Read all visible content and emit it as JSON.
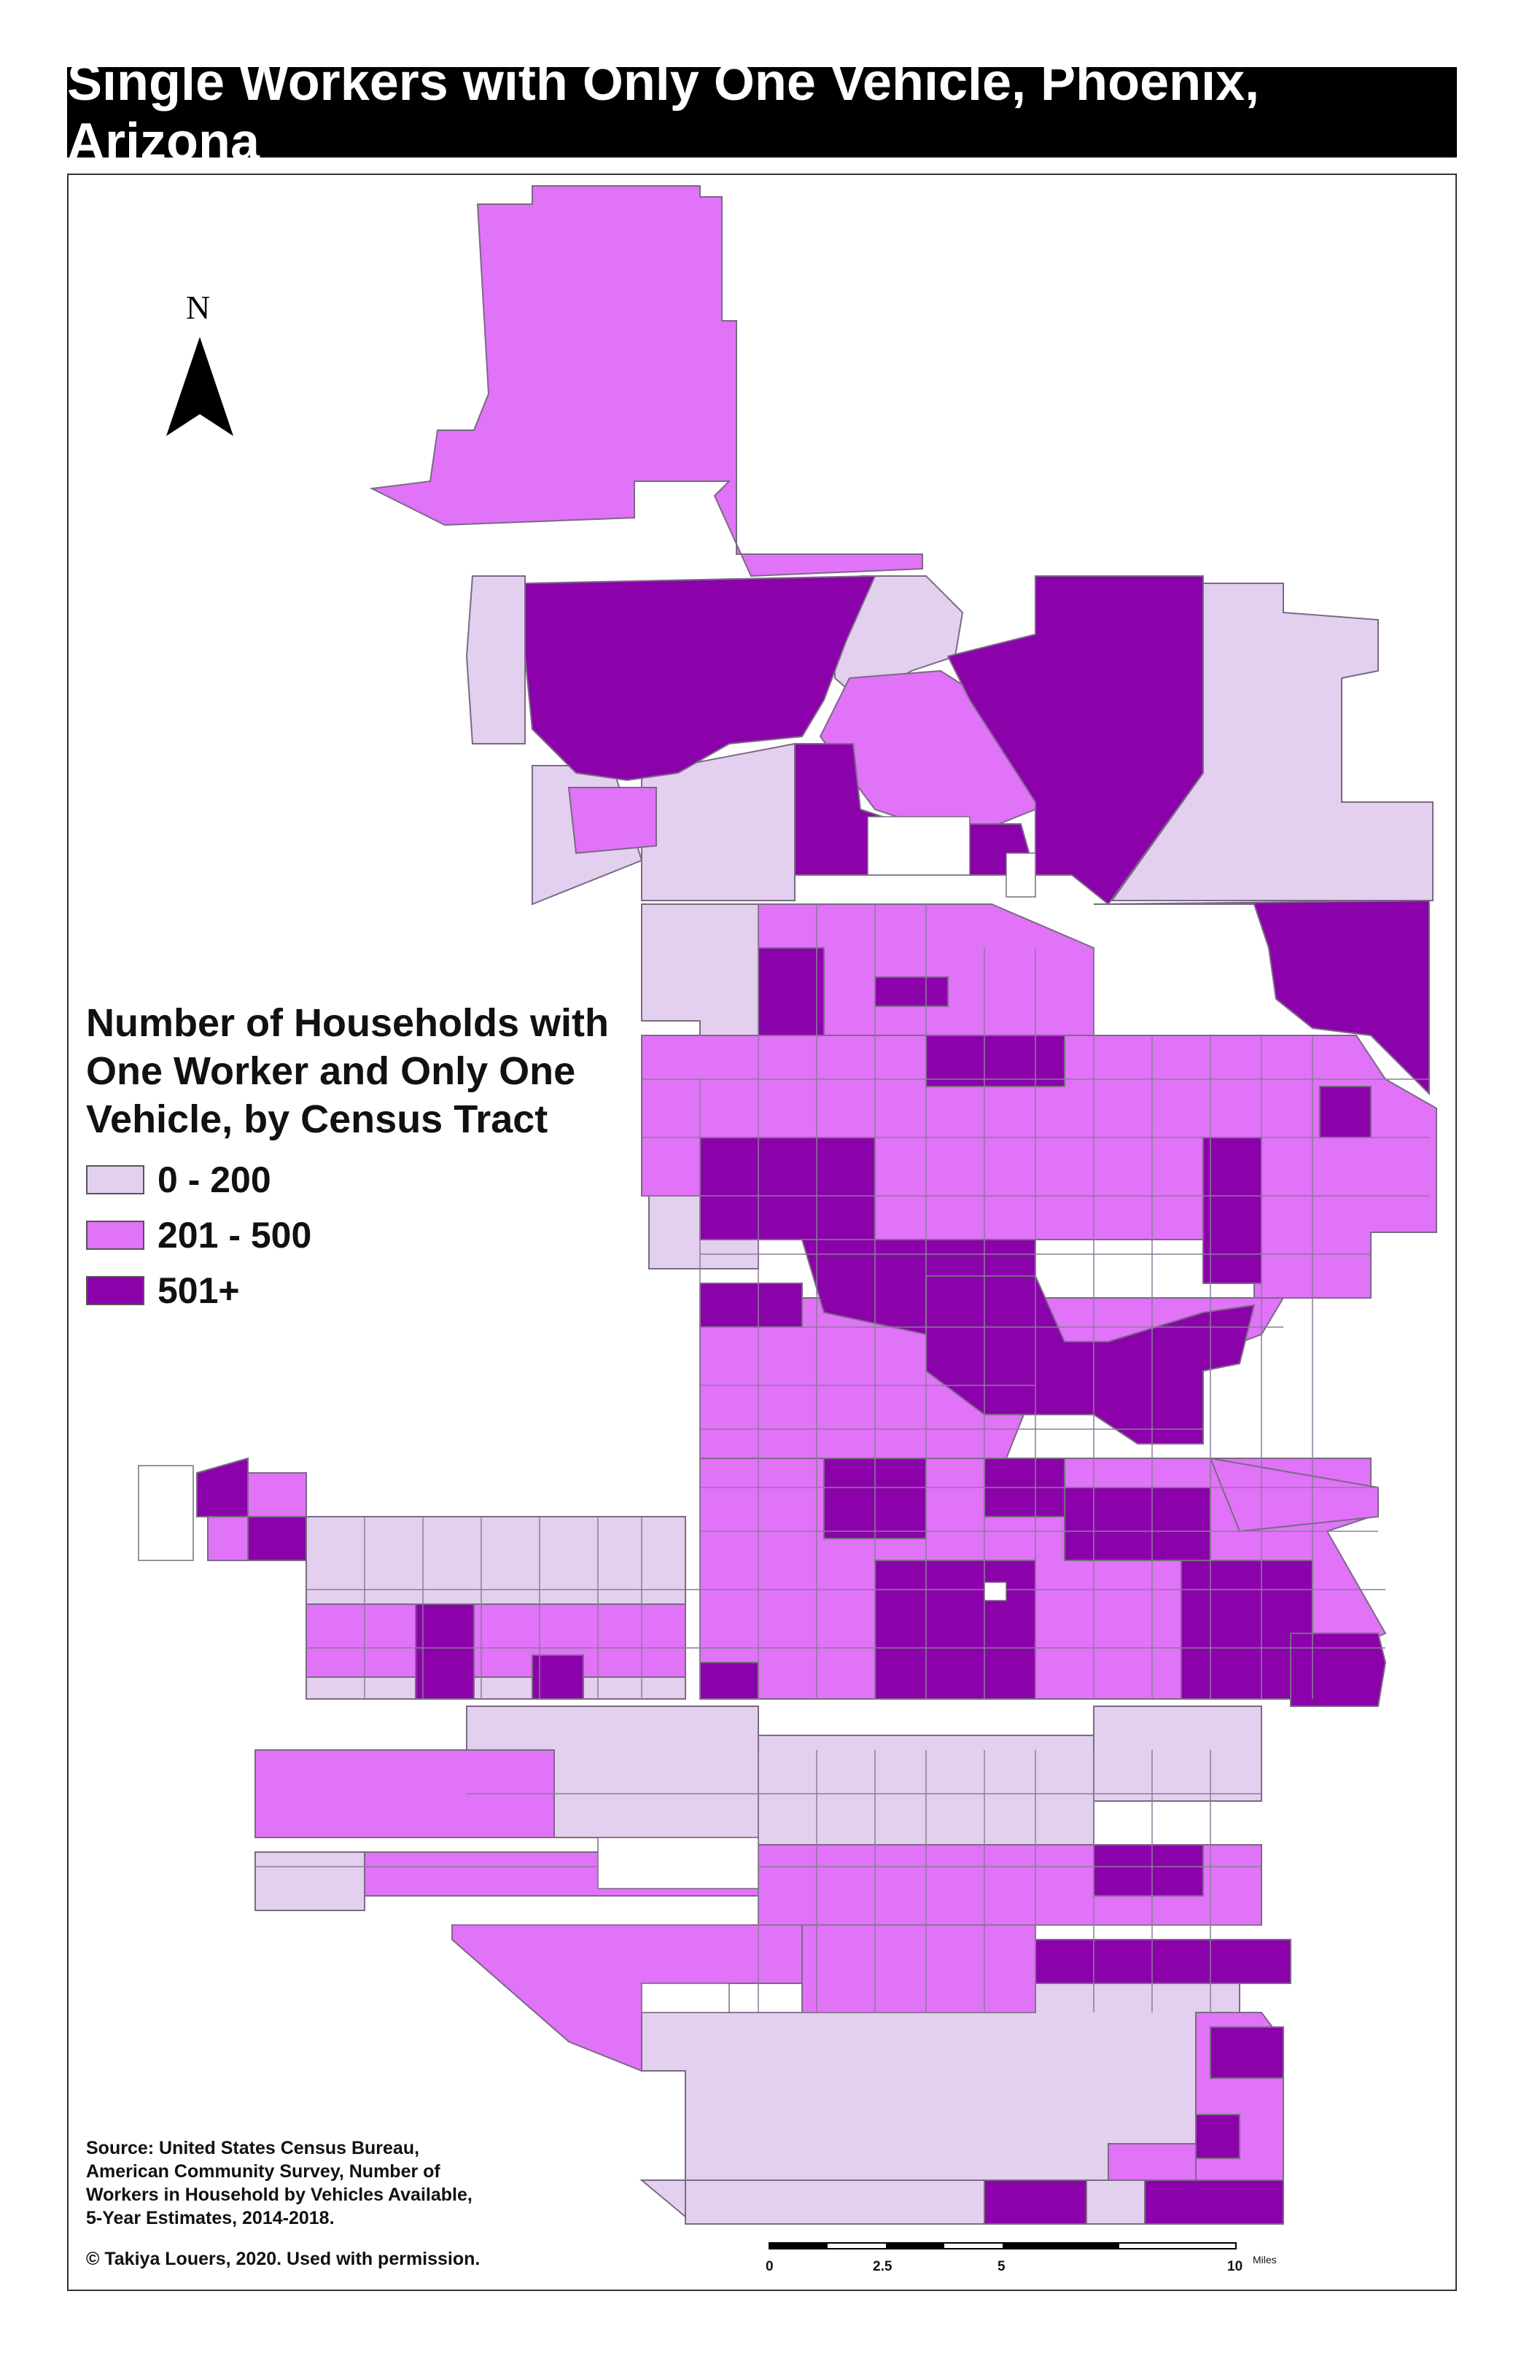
{
  "title": "Single Workers with Only One Vehicle, Phoenix, Arizona",
  "legend": {
    "title_lines": [
      "Number of Households with",
      "One Worker and Only One",
      "Vehicle, by Census Tract"
    ],
    "classes": [
      {
        "label": "0 - 200",
        "color": "#e3d0ef"
      },
      {
        "label": "201 - 500",
        "color": "#e073f8"
      },
      {
        "label": "501+",
        "color": "#8b02aa"
      }
    ]
  },
  "north_arrow_label": "N",
  "scale_bar": {
    "ticks": [
      "0",
      "2.5",
      "5",
      "10"
    ],
    "unit": "Miles"
  },
  "source_lines": [
    "Source: United States Census Bureau,",
    "American Community Survey, Number of",
    "Workers in Household by Vehicles Available,",
    "5-Year Estimates, 2014-2018."
  ],
  "copyright": "© Takiya Louers, 2020. Used with permission.",
  "colors": {
    "border": "#7a6a84",
    "text": "#111111"
  }
}
